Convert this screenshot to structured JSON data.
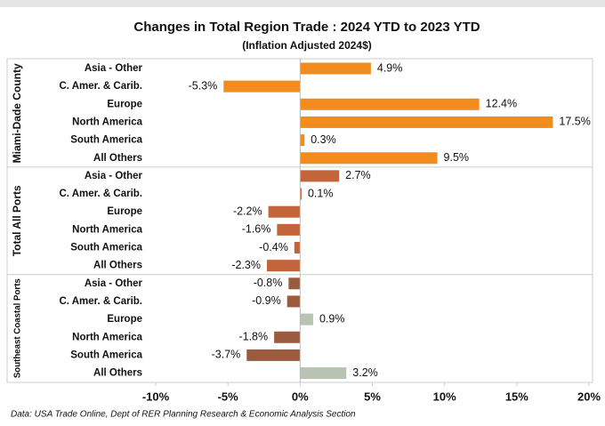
{
  "chart_data": {
    "type": "bar",
    "orientation": "horizontal",
    "title": "Changes in Total Region Trade : 2024 YTD to 2023 YTD",
    "subtitle": "(Inflation Adjusted 2024$)",
    "source": "Data: USA Trade Online, Dept of RER Planning Research & Economic Analysis Section",
    "xlim": [
      -10,
      20
    ],
    "xticks": [
      {
        "value": -10,
        "label": "-10%"
      },
      {
        "value": -5,
        "label": "-5%"
      },
      {
        "value": 0,
        "label": "0%"
      },
      {
        "value": 5,
        "label": "5%"
      },
      {
        "value": 10,
        "label": "10%"
      },
      {
        "value": 15,
        "label": "15%"
      },
      {
        "value": 20,
        "label": "20%"
      }
    ],
    "series": [
      {
        "name": "Miami-Dade County",
        "color": "#f28c1e",
        "categories": [
          "Asia - Other",
          "C. Amer. & Carib.",
          "Europe",
          "North America",
          "South America",
          "All Others"
        ],
        "values": [
          4.9,
          -5.3,
          12.4,
          17.5,
          0.3,
          9.5
        ],
        "value_labels": [
          "4.9%",
          "-5.3%",
          "12.4%",
          "17.5%",
          "0.3%",
          "9.5%"
        ]
      },
      {
        "name": "Total All Ports",
        "color": "#c4643a",
        "categories": [
          "Asia - Other",
          "C. Amer. & Carib.",
          "Europe",
          "North America",
          "South America",
          "All Others"
        ],
        "values": [
          2.7,
          0.1,
          -2.2,
          -1.6,
          -0.4,
          -2.3
        ],
        "value_labels": [
          "2.7%",
          "0.1%",
          "-2.2%",
          "-1.6%",
          "-0.4%",
          "-2.3%"
        ]
      },
      {
        "name": "Southeast Coastal Ports",
        "colors": [
          "#9a5b3e",
          "#9a5b3e",
          "#b8c3b3",
          "#9a5b3e",
          "#9a5b3e",
          "#b8c3b3"
        ],
        "categories": [
          "Asia - Other",
          "C. Amer. & Carib.",
          "Europe",
          "North America",
          "South America",
          "All Others"
        ],
        "values": [
          -0.8,
          -0.9,
          0.9,
          -1.8,
          -3.7,
          3.2
        ],
        "value_labels": [
          "-0.8%",
          "-0.9%",
          "0.9%",
          "-1.8%",
          "-3.7%",
          "3.2%"
        ]
      }
    ]
  }
}
